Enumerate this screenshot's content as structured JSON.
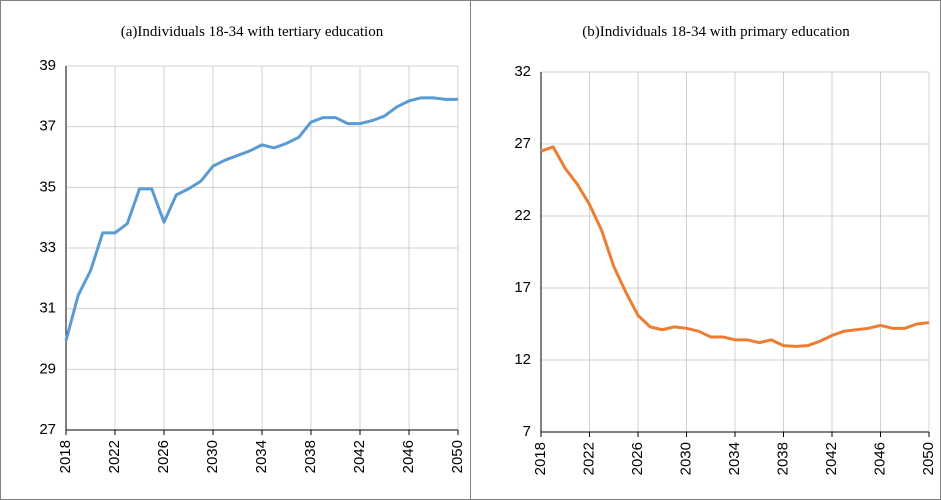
{
  "chart_data": [
    {
      "type": "line",
      "title": "(a)Individuals 18-34 with tertiary education",
      "x": [
        2018,
        2019,
        2020,
        2021,
        2022,
        2023,
        2024,
        2025,
        2026,
        2027,
        2028,
        2029,
        2030,
        2031,
        2032,
        2033,
        2034,
        2035,
        2036,
        2037,
        2038,
        2039,
        2040,
        2041,
        2042,
        2043,
        2044,
        2045,
        2046,
        2047,
        2048,
        2049,
        2050
      ],
      "series": [
        {
          "color": "#5b9bd5",
          "values": [
            29.95,
            31.45,
            32.25,
            33.5,
            33.5,
            33.8,
            34.95,
            34.95,
            33.85,
            34.75,
            34.95,
            35.2,
            35.7,
            35.9,
            36.05,
            36.2,
            36.4,
            36.3,
            36.45,
            36.65,
            37.15,
            37.3,
            37.3,
            37.1,
            37.1,
            37.2,
            37.35,
            37.65,
            37.85,
            37.95,
            37.95,
            37.9,
            37.9
          ]
        }
      ],
      "xlim": [
        2018,
        2050
      ],
      "xticks": [
        2018,
        2022,
        2026,
        2030,
        2034,
        2038,
        2042,
        2046,
        2050
      ],
      "ylim": [
        27,
        39
      ],
      "yticks": [
        27,
        29,
        31,
        33,
        35,
        37,
        39
      ],
      "grid": true
    },
    {
      "type": "line",
      "title": "(b)Individuals 18-34 with  primary education",
      "x": [
        2018,
        2019,
        2020,
        2021,
        2022,
        2023,
        2024,
        2025,
        2026,
        2027,
        2028,
        2029,
        2030,
        2031,
        2032,
        2033,
        2034,
        2035,
        2036,
        2037,
        2038,
        2039,
        2040,
        2041,
        2042,
        2043,
        2044,
        2045,
        2046,
        2047,
        2048,
        2049,
        2050
      ],
      "series": [
        {
          "color": "#ed7d31",
          "values": [
            26.5,
            26.8,
            25.3,
            24.2,
            22.8,
            21.0,
            18.5,
            16.7,
            15.1,
            14.3,
            14.1,
            14.3,
            14.2,
            14.0,
            13.6,
            13.6,
            13.4,
            13.4,
            13.2,
            13.4,
            13.0,
            12.95,
            13.0,
            13.3,
            13.7,
            14.0,
            14.1,
            14.2,
            14.4,
            14.2,
            14.2,
            14.5,
            14.6
          ]
        }
      ],
      "xlim": [
        2018,
        2050
      ],
      "xticks": [
        2018,
        2022,
        2026,
        2030,
        2034,
        2038,
        2042,
        2046,
        2050
      ],
      "ylim": [
        7,
        32
      ],
      "yticks": [
        7,
        12,
        17,
        22,
        27,
        32
      ],
      "grid": true
    }
  ]
}
